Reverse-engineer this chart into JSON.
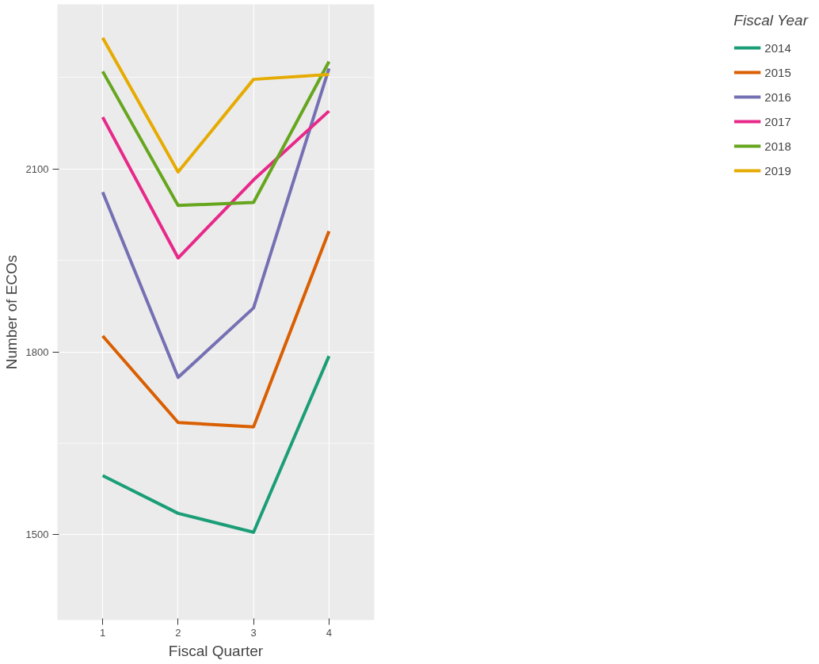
{
  "chart_data": {
    "type": "line",
    "xlabel": "Fiscal Quarter",
    "ylabel": "Number of ECOs",
    "legend_title": "Fiscal Year",
    "x": [
      1,
      2,
      3,
      4
    ],
    "series": [
      {
        "name": "2014",
        "color": "#1b9e77",
        "values": [
          1597,
          1535,
          1504,
          1793
        ]
      },
      {
        "name": "2015",
        "color": "#d95f02",
        "values": [
          1826,
          1684,
          1677,
          1998
        ]
      },
      {
        "name": "2016",
        "color": "#7570b3",
        "values": [
          2062,
          1758,
          1872,
          2265
        ]
      },
      {
        "name": "2017",
        "color": "#e7298a",
        "values": [
          2185,
          1954,
          2082,
          2195
        ]
      },
      {
        "name": "2018",
        "color": "#66a61e",
        "values": [
          2260,
          2040,
          2045,
          2276
        ]
      },
      {
        "name": "2019",
        "color": "#e6ab02",
        "values": [
          2315,
          2095,
          2247,
          2255
        ]
      }
    ],
    "xlim": [
      0.4,
      4.6
    ],
    "ylim": [
      1360,
      2370
    ],
    "xticks": [
      1,
      2,
      3,
      4
    ],
    "yticks": [
      1500,
      1800,
      2100
    ],
    "grid": true,
    "legend": "right",
    "marker": "none",
    "line_style": "solid"
  }
}
